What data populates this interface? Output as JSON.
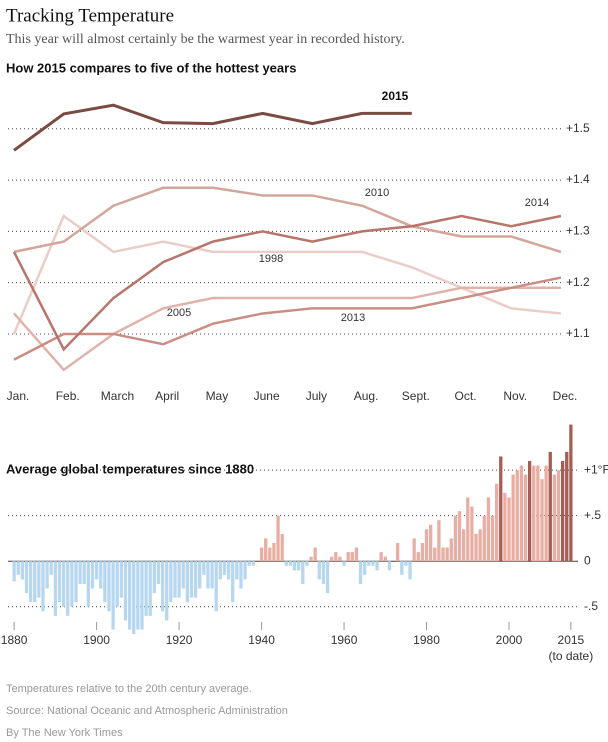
{
  "header": {
    "title": "Tracking Temperature",
    "subtitle": "This year will almost certainly be the warmest year in recorded history."
  },
  "chart_data": [
    {
      "type": "line",
      "title": "How 2015 compares to five of the hottest years",
      "categories": [
        "Jan.",
        "Feb.",
        "March",
        "April",
        "May",
        "June",
        "July",
        "Aug.",
        "Sept.",
        "Oct.",
        "Nov.",
        "Dec."
      ],
      "ylim": [
        1.02,
        1.56
      ],
      "yticks": [
        {
          "value": 1.1,
          "label": "+1.1"
        },
        {
          "value": 1.2,
          "label": "+1.2"
        },
        {
          "value": 1.3,
          "label": "+1.3"
        },
        {
          "value": 1.4,
          "label": "+1.4"
        },
        {
          "value": 1.5,
          "label": "+1.5"
        }
      ],
      "grid": true,
      "series": [
        {
          "name": "1998",
          "color": "#ebcdc7",
          "values": [
            1.1,
            1.33,
            1.26,
            1.28,
            1.26,
            1.26,
            1.26,
            1.26,
            1.23,
            1.19,
            1.15,
            1.14
          ]
        },
        {
          "name": "2005",
          "color": "#e0b3aa",
          "values": [
            1.14,
            1.03,
            1.1,
            1.15,
            1.17,
            1.17,
            1.17,
            1.17,
            1.17,
            1.19,
            1.19,
            1.19
          ]
        },
        {
          "name": "2013",
          "color": "#c98d83",
          "values": [
            1.05,
            1.1,
            1.1,
            1.08,
            1.12,
            1.14,
            1.15,
            1.15,
            1.15,
            1.17,
            1.19,
            1.21
          ]
        },
        {
          "name": "2010",
          "color": "#d3a59b",
          "values": [
            1.26,
            1.28,
            1.35,
            1.385,
            1.385,
            1.37,
            1.37,
            1.35,
            1.31,
            1.29,
            1.29,
            1.26
          ]
        },
        {
          "name": "2014",
          "color": "#b7756b",
          "values": [
            1.26,
            1.07,
            1.17,
            1.24,
            1.28,
            1.3,
            1.28,
            1.3,
            1.31,
            1.33,
            1.31,
            1.33
          ]
        },
        {
          "name": "2015",
          "color": "#7b4a43",
          "values": [
            1.458,
            1.529,
            1.546,
            1.512,
            1.51,
            1.53,
            1.51,
            1.53,
            1.53,
            null,
            null,
            null
          ]
        }
      ]
    },
    {
      "type": "bar",
      "title": "Average global temperatures since 1880",
      "x": [
        1880,
        1881,
        1882,
        1883,
        1884,
        1885,
        1886,
        1887,
        1888,
        1889,
        1890,
        1891,
        1892,
        1893,
        1894,
        1895,
        1896,
        1897,
        1898,
        1899,
        1900,
        1901,
        1902,
        1903,
        1904,
        1905,
        1906,
        1907,
        1908,
        1909,
        1910,
        1911,
        1912,
        1913,
        1914,
        1915,
        1916,
        1917,
        1918,
        1919,
        1920,
        1921,
        1922,
        1923,
        1924,
        1925,
        1926,
        1927,
        1928,
        1929,
        1930,
        1931,
        1932,
        1933,
        1934,
        1935,
        1936,
        1937,
        1938,
        1939,
        1940,
        1941,
        1942,
        1943,
        1944,
        1945,
        1946,
        1947,
        1948,
        1949,
        1950,
        1951,
        1952,
        1953,
        1954,
        1955,
        1956,
        1957,
        1958,
        1959,
        1960,
        1961,
        1962,
        1963,
        1964,
        1965,
        1966,
        1967,
        1968,
        1969,
        1970,
        1971,
        1972,
        1973,
        1974,
        1975,
        1976,
        1977,
        1978,
        1979,
        1980,
        1981,
        1982,
        1983,
        1984,
        1985,
        1986,
        1987,
        1988,
        1989,
        1990,
        1991,
        1992,
        1993,
        1994,
        1995,
        1996,
        1997,
        1998,
        1999,
        2000,
        2001,
        2002,
        2003,
        2004,
        2005,
        2006,
        2007,
        2008,
        2009,
        2010,
        2011,
        2012,
        2013,
        2014,
        2015
      ],
      "values": [
        -0.22,
        -0.15,
        -0.2,
        -0.35,
        -0.45,
        -0.45,
        -0.4,
        -0.55,
        -0.3,
        -0.15,
        -0.6,
        -0.45,
        -0.5,
        -0.6,
        -0.5,
        -0.45,
        -0.25,
        -0.25,
        -0.5,
        -0.3,
        -0.2,
        -0.3,
        -0.45,
        -0.55,
        -0.75,
        -0.5,
        -0.4,
        -0.65,
        -0.75,
        -0.8,
        -0.75,
        -0.75,
        -0.6,
        -0.6,
        -0.35,
        -0.25,
        -0.55,
        -0.65,
        -0.45,
        -0.4,
        -0.4,
        -0.3,
        -0.45,
        -0.4,
        -0.4,
        -0.3,
        -0.15,
        -0.3,
        -0.3,
        -0.55,
        -0.2,
        -0.15,
        -0.2,
        -0.45,
        -0.2,
        -0.3,
        -0.2,
        -0.05,
        -0.05,
        0.0,
        0.15,
        0.25,
        0.15,
        0.2,
        0.5,
        0.3,
        -0.05,
        -0.05,
        -0.1,
        -0.1,
        -0.25,
        -0.05,
        0.05,
        0.15,
        -0.2,
        -0.25,
        -0.35,
        0.05,
        0.1,
        0.05,
        -0.05,
        0.1,
        0.1,
        0.15,
        -0.25,
        -0.15,
        -0.05,
        -0.05,
        -0.1,
        0.1,
        0.05,
        -0.1,
        0.0,
        0.2,
        -0.15,
        -0.05,
        -0.2,
        0.25,
        0.1,
        0.2,
        0.35,
        0.4,
        0.15,
        0.45,
        0.15,
        0.15,
        0.25,
        0.5,
        0.55,
        0.35,
        0.7,
        0.6,
        0.3,
        0.35,
        0.5,
        0.7,
        0.5,
        0.85,
        1.15,
        0.75,
        0.7,
        0.95,
        1.0,
        1.05,
        0.95,
        1.1,
        1.05,
        1.05,
        0.9,
        1.05,
        1.2,
        0.95,
        1.0,
        1.1,
        1.2,
        1.5
      ],
      "color_positive": "#e8aea3",
      "color_negative": "#b6d7ef",
      "highlight_years": [
        1998,
        2005,
        2010,
        2013,
        2014,
        2015
      ],
      "highlight_color": "#a65e54",
      "xlim": [
        1879,
        2016
      ],
      "xticks": [
        1880,
        1900,
        1920,
        1940,
        1960,
        1980,
        2000,
        2015
      ],
      "xtick_note": "(to date)",
      "ylim": [
        -0.81,
        1.55
      ],
      "yticks": [
        {
          "value": -0.5,
          "label": "-.5"
        },
        0,
        {
          "value": 0.5,
          "label": "+.5"
        },
        {
          "value": 1,
          "label": "+1°F"
        }
      ],
      "grid": true
    }
  ],
  "footer": {
    "note": "Temperatures relative to the 20th century average.",
    "source": "Source: National Oceanic and Atmospheric Administration",
    "credit": "By The New York Times"
  }
}
